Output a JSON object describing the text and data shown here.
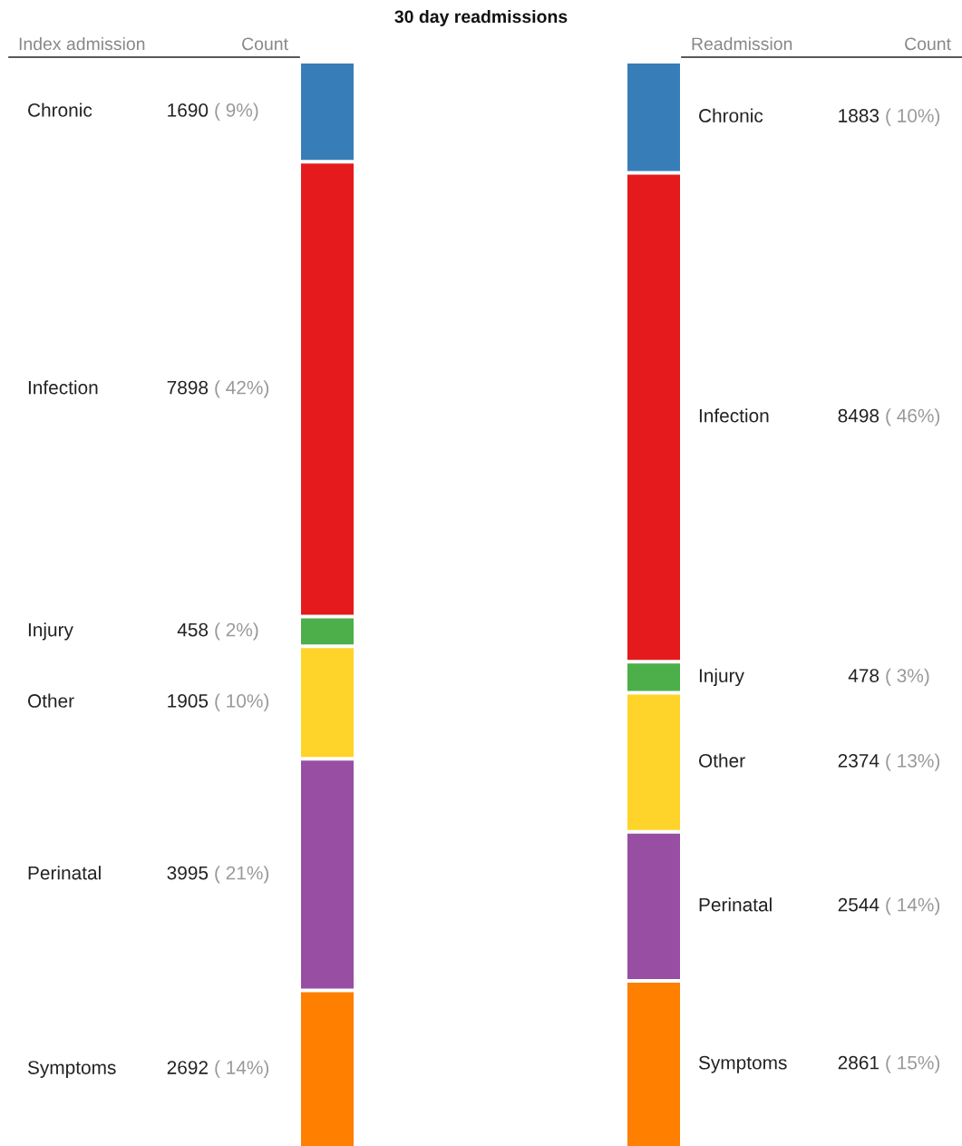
{
  "chart_data": {
    "type": "other",
    "title": "30 day readmissions",
    "ylabel": "Count",
    "data_labels": true,
    "categories": [
      "Chronic",
      "Infection",
      "Injury",
      "Other",
      "Perinatal",
      "Symptoms"
    ],
    "colors": [
      "#377eb8",
      "#e41a1c",
      "#4daf4a",
      "#ffd42a",
      "#984ea3",
      "#ff7f00"
    ],
    "series": [
      {
        "name": "Index admission",
        "values": [
          1690,
          7898,
          458,
          1905,
          3995,
          2692
        ]
      },
      {
        "name": "Readmission",
        "values": [
          1883,
          8498,
          478,
          2374,
          2544,
          2861
        ]
      }
    ],
    "annotations": [
      "( 9%)",
      "( 42%)",
      "( 2%)",
      "( 10%)",
      "( 21%)",
      "( 14%)",
      "( 10%)",
      "( 46%)",
      "( 3%)",
      "( 13%)",
      "( 14%)",
      "( 15%)"
    ]
  }
}
